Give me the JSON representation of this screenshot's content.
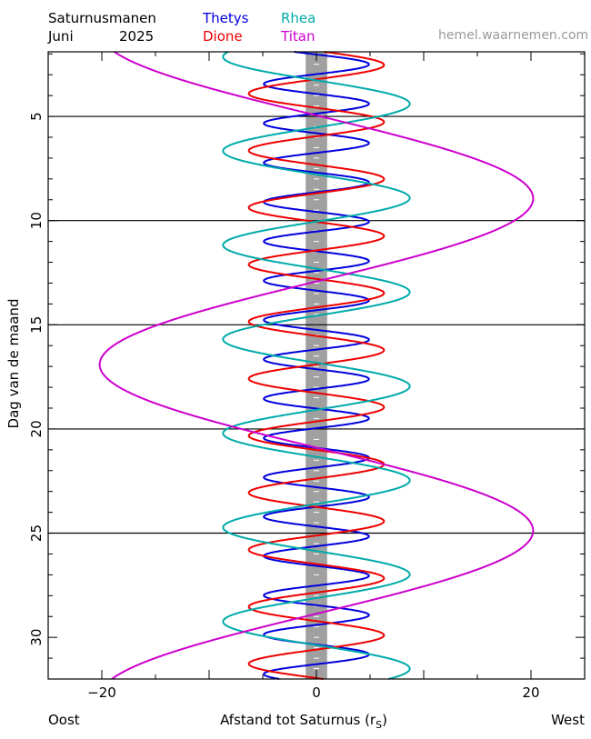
{
  "header": {
    "title": "Saturnusmanen",
    "month": "Juni",
    "year": "2025",
    "site": "hemel.waarnemen.com",
    "site_color": "#999999"
  },
  "chart_data": {
    "type": "line",
    "xlabel_main": "Afstand tot Saturnus (r",
    "xlabel_sub": "S",
    "xlabel_close": ")",
    "x_left_label": "Oost",
    "x_right_label": "West",
    "ylabel": "Dag van de maand",
    "xlim": [
      -25,
      25
    ],
    "ylim": [
      1.9,
      32
    ],
    "y_inverted": true,
    "x_ticks": [
      {
        "value": -20,
        "label": "−20"
      },
      {
        "value": 0,
        "label": "0"
      },
      {
        "value": 20,
        "label": "20"
      }
    ],
    "y_ticks": [
      5,
      10,
      15,
      20,
      25,
      30
    ],
    "y_reference_lines": [
      5,
      10,
      15,
      20,
      25
    ],
    "planet_band": {
      "xmin": -1,
      "xmax": 1,
      "color": "#a0a0a0"
    },
    "series": [
      {
        "name": "Thetys",
        "color": "#0000dd",
        "amplitude": 4.9,
        "period_days": 1.8878,
        "phase_day": 2.03
      },
      {
        "name": "Dione",
        "color": "#ee0000",
        "amplitude": 6.3,
        "period_days": 2.7369,
        "phase_day": 1.85
      },
      {
        "name": "Rhea",
        "color": "#00aaaa",
        "amplitude": 8.7,
        "period_days": 4.5175,
        "phase_day": 3.27
      },
      {
        "name": "Titan",
        "color": "#cc00cc",
        "amplitude": 20.2,
        "period_days": 15.945,
        "phase_day": 4.95
      }
    ]
  }
}
